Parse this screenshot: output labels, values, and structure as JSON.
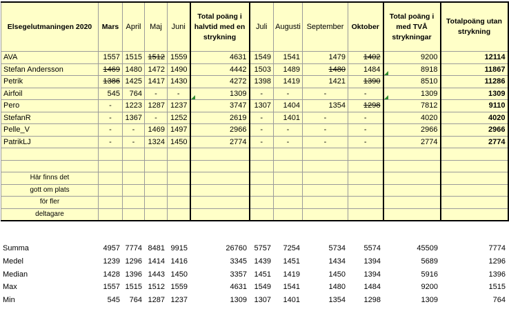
{
  "header": {
    "name_col": "Elsegelutmaningen 2020",
    "months1": [
      "Mars",
      "April",
      "Maj",
      "Juni"
    ],
    "half_total": "Total poäng i halvtid med en strykning",
    "months2": [
      "Juli",
      "Augusti",
      "September",
      "Oktober"
    ],
    "total_two": "Total poäng i med TVÅ strykningar",
    "total_none": "Totalpoäng utan strykning"
  },
  "rows": [
    {
      "name": "AVA",
      "mars": "1557",
      "april": "1515",
      "maj": "1512",
      "juni": "1559",
      "half": "4631",
      "juli": "1549",
      "augusti": "1541",
      "september": "1479",
      "oktober": "1402",
      "two": "9200",
      "total": "12114",
      "strike": [
        "maj",
        "oktober"
      ]
    },
    {
      "name": "Stefan Andersson",
      "mars": "1469",
      "april": "1480",
      "maj": "1472",
      "juni": "1490",
      "half": "4442",
      "juli": "1503",
      "augusti": "1489",
      "september": "1480",
      "oktober": "1484",
      "two": "8918",
      "total": "11867",
      "strike": [
        "mars",
        "september"
      ]
    },
    {
      "name": "Petrik",
      "mars": "1386",
      "april": "1425",
      "maj": "1417",
      "juni": "1430",
      "half": "4272",
      "juli": "1398",
      "augusti": "1419",
      "september": "1421",
      "oktober": "1390",
      "two": "8510",
      "total": "11286",
      "strike": [
        "mars",
        "oktober"
      ]
    },
    {
      "name": "Airfoil",
      "mars": "545",
      "april": "764",
      "maj": "-",
      "juni": "-",
      "half": "1309",
      "juli": "-",
      "augusti": "-",
      "september": "-",
      "oktober": "-",
      "two": "1309",
      "total": "1309",
      "strike": []
    },
    {
      "name": "Pero",
      "mars": "-",
      "april": "1223",
      "maj": "1287",
      "juni": "1237",
      "half": "3747",
      "juli": "1307",
      "augusti": "1404",
      "september": "1354",
      "oktober": "1298",
      "two": "7812",
      "total": "9110",
      "strike": [
        "oktober"
      ]
    },
    {
      "name": "StefanR",
      "mars": "-",
      "april": "1367",
      "maj": "-",
      "juni": "1252",
      "half": "2619",
      "juli": "-",
      "augusti": "1401",
      "september": "-",
      "oktober": "-",
      "two": "4020",
      "total": "4020",
      "strike": []
    },
    {
      "name": "Pelle_V",
      "mars": "-",
      "april": "-",
      "maj": "1469",
      "juni": "1497",
      "half": "2966",
      "juli": "-",
      "augusti": "-",
      "september": "-",
      "oktober": "-",
      "two": "2966",
      "total": "2966",
      "strike": []
    },
    {
      "name": "PatrikLJ",
      "mars": "-",
      "april": "-",
      "maj": "1324",
      "juni": "1450",
      "half": "2774",
      "juli": "-",
      "augusti": "-",
      "september": "-",
      "oktober": "-",
      "two": "2774",
      "total": "2774",
      "strike": []
    }
  ],
  "notes": [
    "Här finns det",
    "gott om plats",
    "för fler",
    "deltagare"
  ],
  "stats": [
    {
      "label": "Summa",
      "vals": [
        "4957",
        "7774",
        "8481",
        "9915",
        "26760",
        "5757",
        "7254",
        "5734",
        "5574",
        "45509",
        "7774"
      ]
    },
    {
      "label": "Medel",
      "vals": [
        "1239",
        "1296",
        "1414",
        "1416",
        "3345",
        "1439",
        "1451",
        "1434",
        "1394",
        "5689",
        "1296"
      ]
    },
    {
      "label": "Median",
      "vals": [
        "1428",
        "1396",
        "1443",
        "1450",
        "3357",
        "1451",
        "1419",
        "1450",
        "1394",
        "5916",
        "1396"
      ]
    },
    {
      "label": "Max",
      "vals": [
        "1557",
        "1515",
        "1512",
        "1559",
        "4631",
        "1549",
        "1541",
        "1480",
        "1484",
        "9200",
        "1515"
      ]
    },
    {
      "label": "Min",
      "vals": [
        "545",
        "764",
        "1287",
        "1237",
        "1309",
        "1307",
        "1401",
        "1354",
        "1298",
        "1309",
        "764"
      ]
    }
  ],
  "colors": {
    "cell_fill": "#ffffc8",
    "grid": "#9a9a9a",
    "comment_marker": "#2e8b2e"
  }
}
